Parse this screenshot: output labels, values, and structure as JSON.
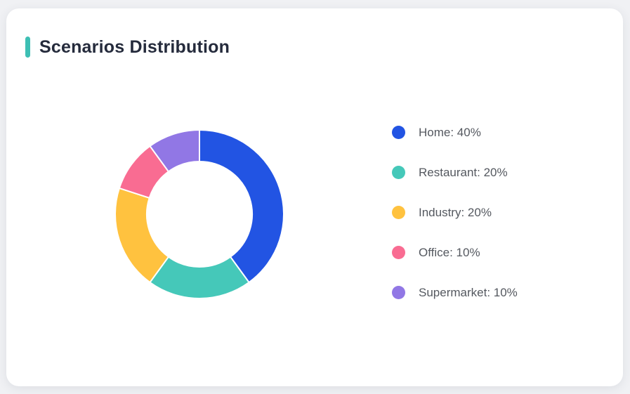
{
  "page": {
    "background_color": "#F0F1F4"
  },
  "card": {
    "title": "Scenarios Distribution",
    "accent_color": "#3DBFB4",
    "background_color": "#ffffff",
    "title_color": "#252B3C"
  },
  "chart_data": {
    "type": "pie",
    "variant": "donut",
    "title": "Scenarios Distribution",
    "categories": [
      "Home",
      "Restaurant",
      "Industry",
      "Office",
      "Supermarket"
    ],
    "values": [
      40,
      20,
      20,
      10,
      10
    ],
    "unit": "%",
    "colors": [
      "#2254E3",
      "#45C8B9",
      "#FFC23F",
      "#F96C92",
      "#9177E5"
    ],
    "legend_labels": [
      "Home: 40%",
      "Restaurant: 20%",
      "Industry: 20%",
      "Office: 10%",
      "Supermarket: 10%"
    ],
    "legend_position": "right",
    "legend_text_color": "#54585F",
    "start_angle_deg": -90,
    "direction": "clockwise",
    "inner_radius_ratio": 0.625,
    "slice_border_color": "#ffffff",
    "slice_border_width": 2
  }
}
